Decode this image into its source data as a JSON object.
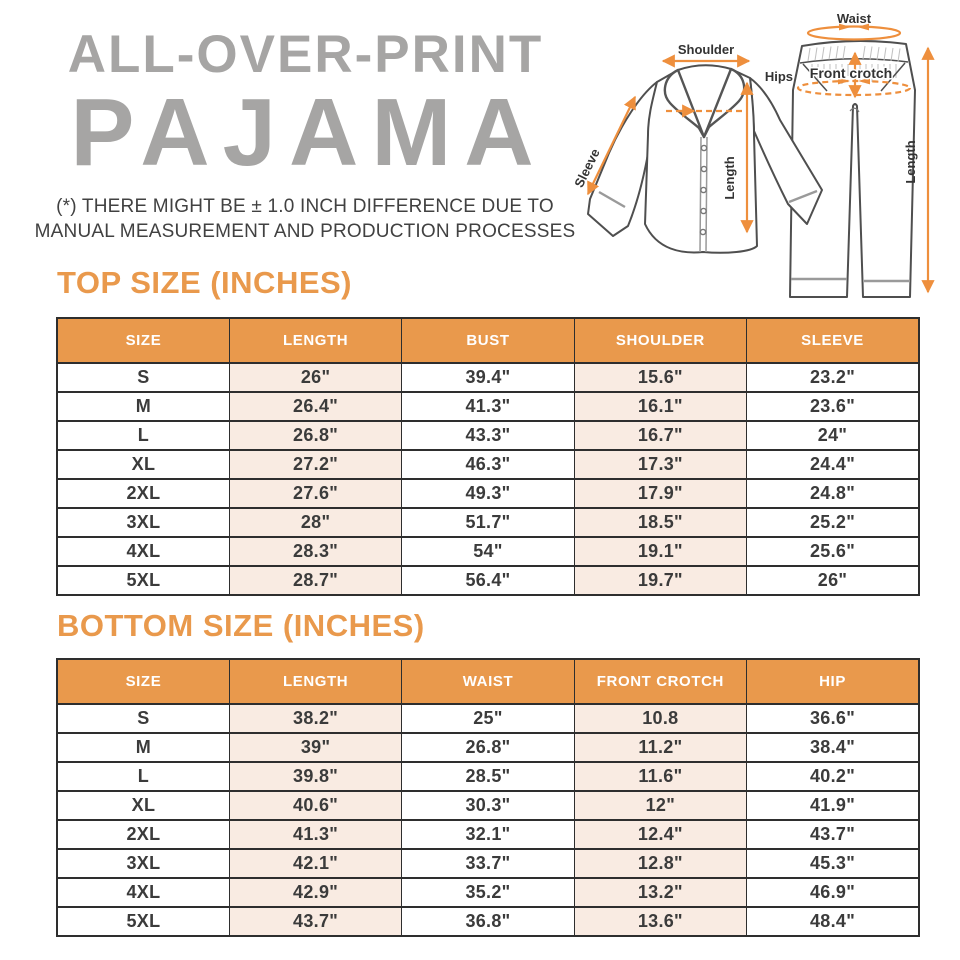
{
  "title": {
    "line1": "ALL-OVER-PRINT",
    "line2": "PAJAMA"
  },
  "disclaimer": {
    "line1": "(*) THERE MIGHT BE ± 1.0 INCH DIFFERENCE DUE TO",
    "line2": "MANUAL MEASUREMENT AND PRODUCTION PROCESSES"
  },
  "diagram": {
    "labels": {
      "shoulder": "Shoulder",
      "sleeve": "Sleeve",
      "top_length": "Length",
      "waist": "Waist",
      "hips": "Hips",
      "front_crotch": "Front crotch",
      "bottom_length": "Length"
    }
  },
  "top_table": {
    "heading": "TOP SIZE (INCHES)",
    "columns": [
      "SIZE",
      "LENGTH",
      "BUST",
      "SHOULDER",
      "SLEEVE"
    ],
    "rows": [
      [
        "S",
        "26\"",
        "39.4\"",
        "15.6\"",
        "23.2\""
      ],
      [
        "M",
        "26.4\"",
        "41.3\"",
        "16.1\"",
        "23.6\""
      ],
      [
        "L",
        "26.8\"",
        "43.3\"",
        "16.7\"",
        "24\""
      ],
      [
        "XL",
        "27.2\"",
        "46.3\"",
        "17.3\"",
        "24.4\""
      ],
      [
        "2XL",
        "27.6\"",
        "49.3\"",
        "17.9\"",
        "24.8\""
      ],
      [
        "3XL",
        "28\"",
        "51.7\"",
        "18.5\"",
        "25.2\""
      ],
      [
        "4XL",
        "28.3\"",
        "54\"",
        "19.1\"",
        "25.6\""
      ],
      [
        "5XL",
        "28.7\"",
        "56.4\"",
        "19.7\"",
        "26\""
      ]
    ]
  },
  "bottom_table": {
    "heading": "BOTTOM SIZE (INCHES)",
    "columns": [
      "SIZE",
      "LENGTH",
      "WAIST",
      "FRONT CROTCH",
      "HIP"
    ],
    "rows": [
      [
        "S",
        "38.2\"",
        "25\"",
        "10.8",
        "36.6\""
      ],
      [
        "M",
        "39\"",
        "26.8\"",
        "11.2\"",
        "38.4\""
      ],
      [
        "L",
        "39.8\"",
        "28.5\"",
        "11.6\"",
        "40.2\""
      ],
      [
        "XL",
        "40.6\"",
        "30.3\"",
        "12\"",
        "41.9\""
      ],
      [
        "2XL",
        "41.3\"",
        "32.1\"",
        "12.4\"",
        "43.7\""
      ],
      [
        "3XL",
        "42.1\"",
        "33.7\"",
        "12.8\"",
        "45.3\""
      ],
      [
        "4XL",
        "42.9\"",
        "35.2\"",
        "13.2\"",
        "46.9\""
      ],
      [
        "5XL",
        "43.7\"",
        "36.8\"",
        "13.6\"",
        "48.4\""
      ]
    ]
  },
  "colors": {
    "accent_orange": "#E9994C",
    "arrow_orange": "#EE8F3D",
    "title_gray": "#A6A5A4",
    "row_pink": "#F9EBE2",
    "border_dark": "#2E2E2E",
    "cell_text": "#3B3B3B",
    "line_gray": "#4F4F4F"
  }
}
